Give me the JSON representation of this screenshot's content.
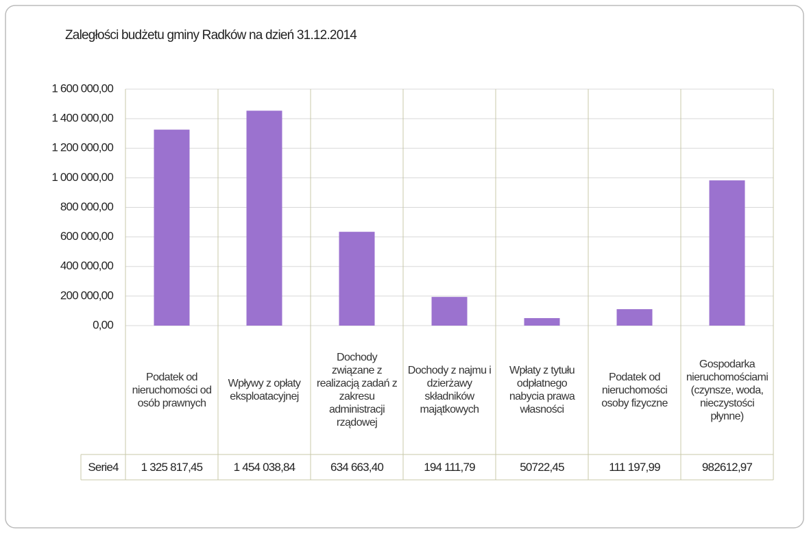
{
  "chart_data": {
    "type": "bar",
    "title": "Zaległości budżetu gminy Radków na dzień 31.12.2014",
    "categories": [
      "Podatek od nieruchomości od osób prawnych",
      "Wpływy z opłaty eksploatacyjnej",
      "Dochody związane z realizacją zadań z zakresu administracji rządowej",
      "Dochody z najmu i dzierżawy składników majątkowych",
      "Wpłaty z tytułu odpłatnego nabycia prawa własności",
      "Podatek od nieruchomości osoby fizyczne",
      "Gospodarka nieruchomościami (czynsze, woda, nieczystości płynne)"
    ],
    "series": [
      {
        "name": "Serie4",
        "color": "#9b72cf",
        "values": [
          1325817.45,
          1454038.84,
          634663.4,
          194111.79,
          50722.45,
          111197.99,
          982612.97
        ],
        "value_labels": [
          "1 325 817,45",
          "1 454 038,84",
          "634 663,40",
          "194 111,79",
          "50722,45",
          "111 197,99",
          "982612,97"
        ]
      }
    ],
    "ylim": [
      0,
      1600000
    ],
    "yticks": [
      {
        "value": 0,
        "label": "0,00"
      },
      {
        "value": 200000,
        "label": "200 000,00"
      },
      {
        "value": 400000,
        "label": "400 000,00"
      },
      {
        "value": 600000,
        "label": "600 000,00"
      },
      {
        "value": 800000,
        "label": "800 000,00"
      },
      {
        "value": 1000000,
        "label": "1 000 000,00"
      },
      {
        "value": 1200000,
        "label": "1 200 000,00"
      },
      {
        "value": 1400000,
        "label": "1 400 000,00"
      },
      {
        "value": 1600000,
        "label": "1 600 000,00"
      }
    ],
    "grid": true
  }
}
